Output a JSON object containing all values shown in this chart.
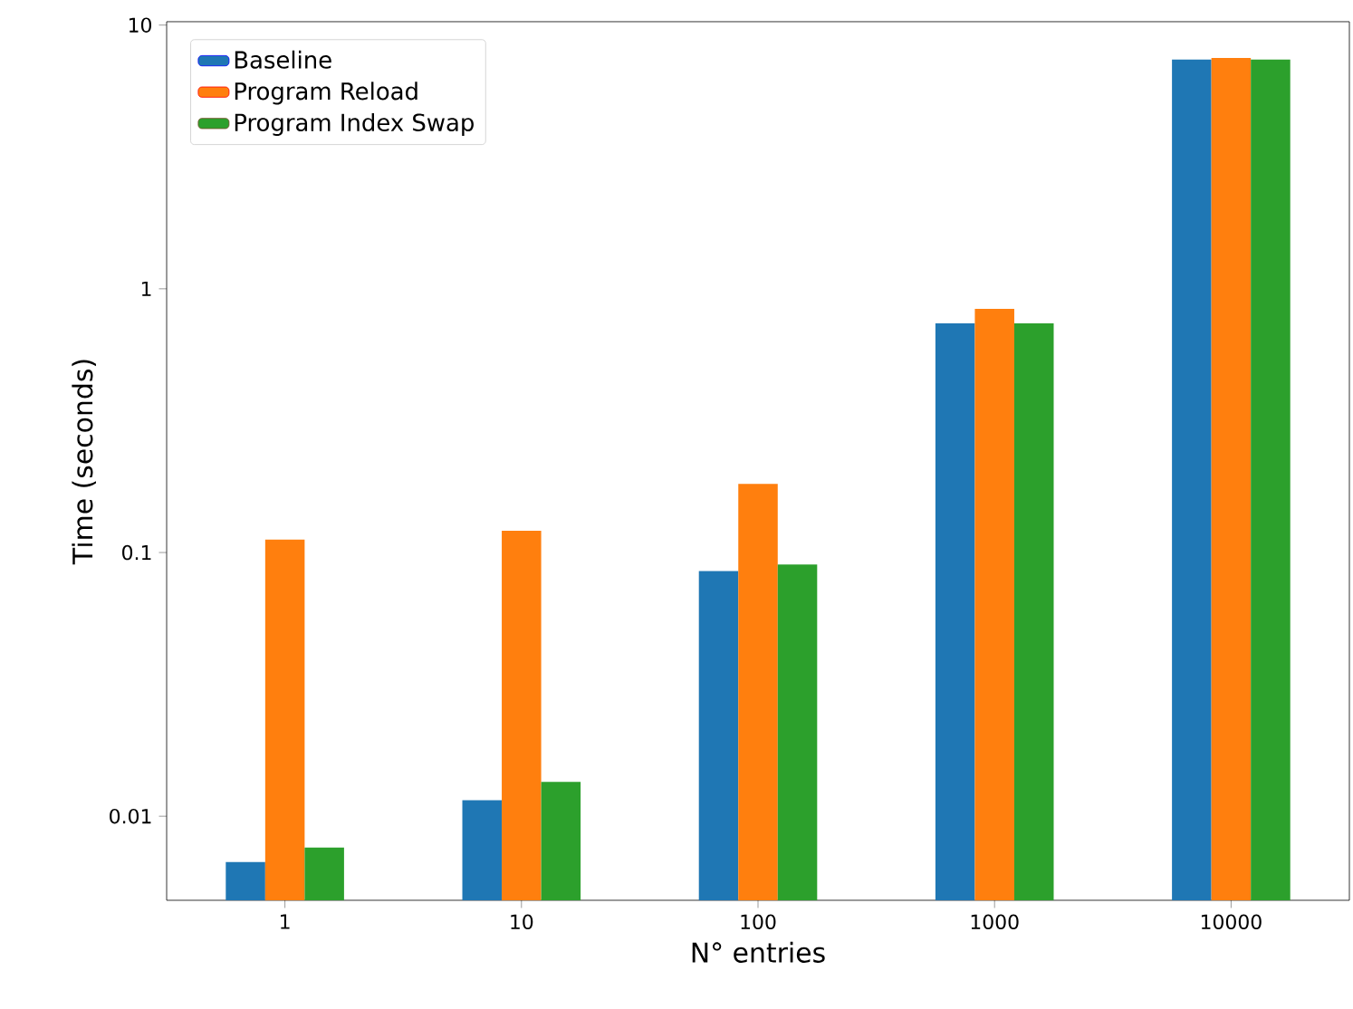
{
  "chart_data": {
    "type": "bar",
    "xlabel": "N° entries",
    "ylabel": "Time (seconds)",
    "categories": [
      "1",
      "10",
      "100",
      "1000",
      "10000"
    ],
    "series": [
      {
        "name": "Baseline",
        "color": "#1f77b4",
        "values": [
          0.0067,
          0.0115,
          0.085,
          0.74,
          7.4
        ]
      },
      {
        "name": "Program Reload",
        "color": "#ff7f0e",
        "values": [
          0.112,
          0.121,
          0.182,
          0.84,
          7.5
        ]
      },
      {
        "name": "Program Index Swap",
        "color": "#2ca02c",
        "values": [
          0.0076,
          0.0135,
          0.09,
          0.74,
          7.4
        ]
      }
    ],
    "log": "y",
    "ylim": [
      0.0048,
      10.3
    ],
    "yticks": [
      {
        "value": 0.01,
        "label": "0.01"
      },
      {
        "value": 0.1,
        "label": "0.1"
      },
      {
        "value": 1,
        "label": "1"
      },
      {
        "value": 10,
        "label": "10"
      }
    ],
    "grid": false,
    "legend": "top left"
  }
}
